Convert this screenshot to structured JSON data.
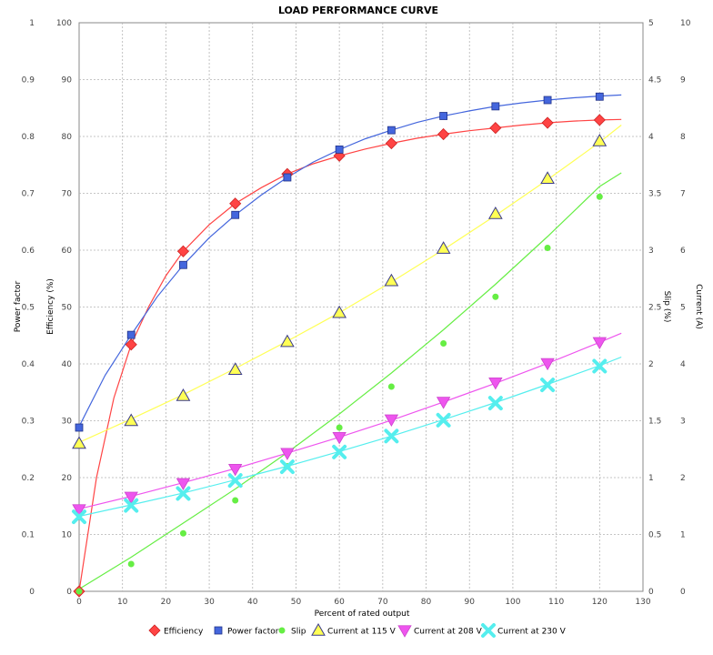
{
  "chart_data": {
    "type": "scatter",
    "title": "LOAD PERFORMANCE CURVE",
    "xlabel": "Percent of rated output",
    "xlim": [
      0,
      130
    ],
    "xticks": [
      0,
      10,
      20,
      30,
      40,
      50,
      60,
      70,
      80,
      90,
      100,
      110,
      120,
      130
    ],
    "grid": true,
    "legend_position": "bottom",
    "axes": {
      "power_factor": {
        "label": "Power factor",
        "side": "left",
        "range": [
          0,
          1
        ],
        "ticks": [
          "0",
          "0.1",
          "0.2",
          "0.3",
          "0.4",
          "0.5",
          "0.6",
          "0.7",
          "0.8",
          "0.9",
          "1"
        ]
      },
      "efficiency": {
        "label": "Efficiency (%)",
        "side": "left",
        "range": [
          0,
          100
        ],
        "ticks": [
          "0",
          "10",
          "20",
          "30",
          "40",
          "50",
          "60",
          "70",
          "80",
          "90",
          "100"
        ]
      },
      "slip": {
        "label": "Slip (%)",
        "side": "right",
        "range": [
          0,
          5
        ],
        "ticks": [
          "0",
          "0.5",
          "1",
          "1.5",
          "2",
          "2.5",
          "3",
          "3.5",
          "4",
          "4.5",
          "5"
        ]
      },
      "current": {
        "label": "Current (A)",
        "side": "right",
        "range": [
          0,
          10
        ],
        "ticks": [
          "0",
          "1",
          "2",
          "3",
          "4",
          "5",
          "6",
          "7",
          "8",
          "9",
          "10"
        ]
      }
    },
    "series": [
      {
        "name": "Efficiency",
        "axis": "efficiency",
        "color": "#ff4444",
        "marker": "diamond",
        "x": [
          0,
          12,
          24,
          36,
          48,
          60,
          72,
          84,
          96,
          108,
          120
        ],
        "y": [
          0,
          43.4,
          59.8,
          68.2,
          73.4,
          76.6,
          78.8,
          80.4,
          81.5,
          82.4,
          82.9
        ],
        "curve_x": [
          0,
          4,
          8,
          12,
          16,
          20,
          24,
          30,
          36,
          42,
          48,
          54,
          60,
          66,
          72,
          78,
          84,
          90,
          96,
          102,
          108,
          114,
          120,
          125
        ],
        "curve_y": [
          0,
          20,
          34,
          43.4,
          50,
          55.5,
          59.8,
          64.5,
          68.2,
          71,
          73.4,
          75.2,
          76.6,
          77.8,
          78.8,
          79.7,
          80.4,
          81,
          81.5,
          82,
          82.4,
          82.7,
          82.9,
          83
        ]
      },
      {
        "name": "Power factor",
        "axis": "power_factor",
        "color": "#4466dd",
        "marker": "square",
        "x": [
          0,
          12,
          24,
          36,
          48,
          60,
          72,
          84,
          96,
          108,
          120
        ],
        "y": [
          0.288,
          0.451,
          0.574,
          0.662,
          0.728,
          0.777,
          0.811,
          0.836,
          0.853,
          0.864,
          0.87
        ],
        "curve_x": [
          0,
          6,
          12,
          18,
          24,
          30,
          36,
          42,
          48,
          54,
          60,
          66,
          72,
          78,
          84,
          90,
          96,
          102,
          108,
          114,
          120,
          125
        ],
        "curve_y": [
          0.29,
          0.38,
          0.451,
          0.518,
          0.574,
          0.622,
          0.662,
          0.697,
          0.728,
          0.755,
          0.777,
          0.796,
          0.811,
          0.825,
          0.836,
          0.845,
          0.853,
          0.859,
          0.864,
          0.868,
          0.871,
          0.873
        ]
      },
      {
        "name": "Slip",
        "axis": "slip",
        "color": "#66ee44",
        "marker": "circle",
        "x": [
          0,
          12,
          24,
          36,
          48,
          60,
          72,
          84,
          96,
          108,
          120
        ],
        "y": [
          0,
          0.24,
          0.51,
          0.8,
          1.1,
          1.44,
          1.8,
          2.18,
          2.59,
          3.02,
          3.47
        ],
        "curve_x": [
          0,
          12,
          24,
          36,
          48,
          60,
          72,
          84,
          96,
          108,
          120,
          125
        ],
        "curve_y": [
          0.02,
          0.3,
          0.6,
          0.9,
          1.22,
          1.56,
          1.92,
          2.3,
          2.7,
          3.12,
          3.56,
          3.68
        ]
      },
      {
        "name": "Current at 115 V",
        "axis": "current",
        "color": "#ffff55",
        "marker": "triangle-up",
        "x": [
          0,
          12,
          24,
          36,
          48,
          60,
          72,
          84,
          96,
          108,
          120
        ],
        "y": [
          2.6,
          3.0,
          3.44,
          3.9,
          4.39,
          4.9,
          5.46,
          6.03,
          6.64,
          7.26,
          7.92
        ],
        "curve_x": [
          0,
          12,
          24,
          36,
          48,
          60,
          72,
          84,
          96,
          108,
          120,
          125
        ],
        "curve_y": [
          2.62,
          3.03,
          3.46,
          3.92,
          4.4,
          4.9,
          5.44,
          6.01,
          6.61,
          7.24,
          7.9,
          8.2
        ]
      },
      {
        "name": "Current at 208 V",
        "axis": "current",
        "color": "#ee55ee",
        "marker": "triangle-down",
        "x": [
          0,
          12,
          24,
          36,
          48,
          60,
          72,
          84,
          96,
          108,
          120
        ],
        "y": [
          1.44,
          1.66,
          1.9,
          2.15,
          2.43,
          2.71,
          3.02,
          3.33,
          3.67,
          4.01,
          4.38
        ],
        "curve_x": [
          0,
          12,
          24,
          36,
          48,
          60,
          72,
          84,
          96,
          108,
          120,
          125
        ],
        "curve_y": [
          1.45,
          1.67,
          1.91,
          2.16,
          2.43,
          2.71,
          3.01,
          3.33,
          3.66,
          4.01,
          4.38,
          4.54
        ]
      },
      {
        "name": "Current at 230 V",
        "axis": "current",
        "color": "#55eeee",
        "marker": "x",
        "x": [
          0,
          12,
          24,
          36,
          48,
          60,
          72,
          84,
          96,
          108,
          120
        ],
        "y": [
          1.31,
          1.51,
          1.72,
          1.95,
          2.19,
          2.45,
          2.73,
          3.01,
          3.31,
          3.63,
          3.96
        ],
        "curve_x": [
          0,
          12,
          24,
          36,
          48,
          60,
          72,
          84,
          96,
          108,
          120,
          125
        ],
        "curve_y": [
          1.32,
          1.52,
          1.73,
          1.96,
          2.2,
          2.46,
          2.73,
          3.02,
          3.32,
          3.64,
          3.97,
          4.12
        ]
      }
    ]
  }
}
